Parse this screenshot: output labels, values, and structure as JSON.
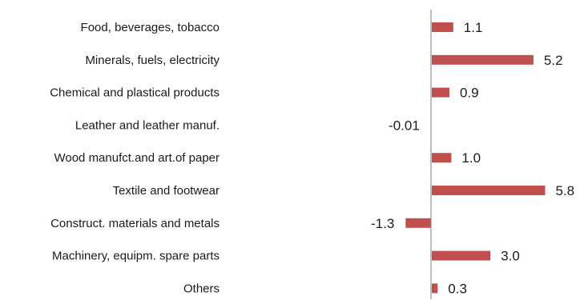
{
  "chart_data": {
    "type": "bar",
    "orientation": "horizontal",
    "categories": [
      "Food, beverages, tobacco",
      "Minerals, fuels, electricity",
      "Chemical and plastical products",
      "Leather and leather manuf.",
      "Wood manufct.and art.of paper",
      "Textile and footwear",
      "Construct. materials and metals",
      "Machinery, equipm. spare parts",
      "Others"
    ],
    "values": [
      1.1,
      5.2,
      0.9,
      -0.01,
      1.0,
      5.8,
      -1.3,
      3.0,
      0.3
    ],
    "value_labels": [
      "1.1",
      "5.2",
      "0.9",
      "-0.01",
      "1.0",
      "5.8",
      "-1.3",
      "3.0",
      "0.3"
    ],
    "xlim": [
      -1.4,
      6.2
    ],
    "grid": false,
    "bar_color": "#c0504d",
    "axis_color": "#7f7f7f"
  }
}
